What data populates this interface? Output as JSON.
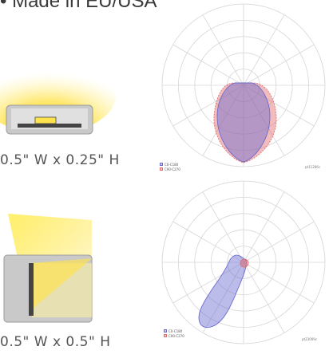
{
  "header": {
    "bullet_text": "• Made in EU/USA"
  },
  "fixtures": [
    {
      "dimension_label": "0.5\" W x 0.25\" H",
      "legend": [
        "C0-C180",
        "C90-C270"
      ],
      "footnote": "pt11206c"
    },
    {
      "dimension_label": "0.5\" W x 0.5\" H",
      "legend": [
        "C0-C180",
        "C90-C270"
      ],
      "footnote": "pt23009c"
    }
  ],
  "colors": {
    "series_blue": "#6a6ad0",
    "series_red": "#e36a6a",
    "grid": "#d6d6d6",
    "light_glow": "#ffe34d",
    "housing": "#b8b8b8"
  }
}
